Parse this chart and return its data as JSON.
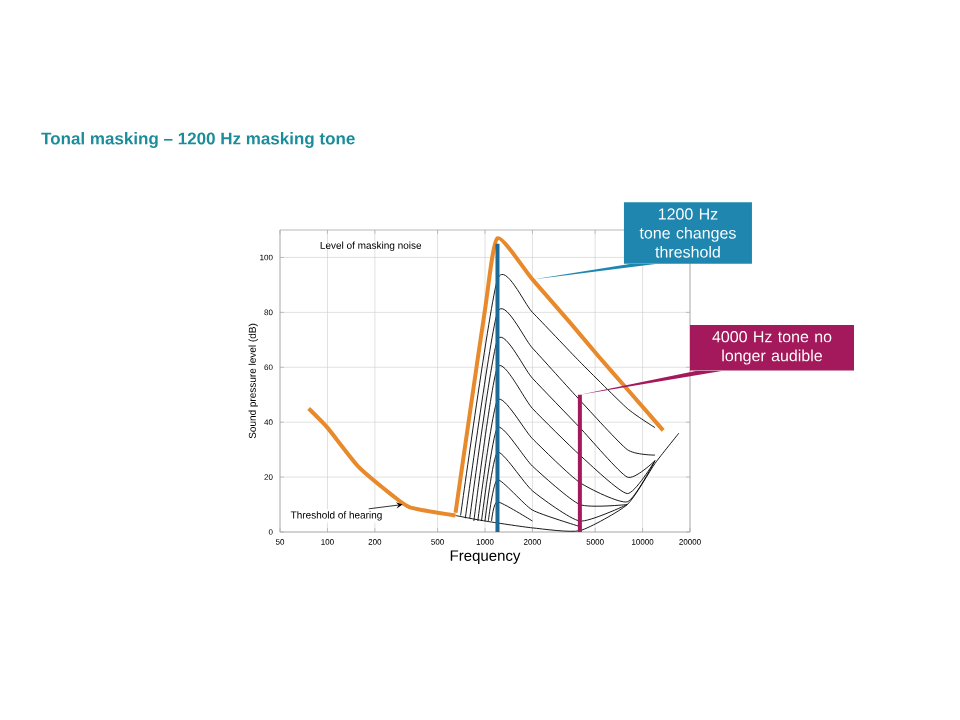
{
  "chart_data": {
    "type": "line",
    "title": "Tonal masking – 1200 Hz masking tone",
    "xlabel": "Frequency",
    "ylabel": "Sound pressure level (dB)",
    "log": "x",
    "grid": true,
    "xlim": [
      50,
      20000
    ],
    "xticks": [
      50,
      100,
      200,
      500,
      1000,
      2000,
      5000,
      10000,
      20000
    ],
    "ylim": [
      0,
      110
    ],
    "yticks": [
      0,
      20,
      40,
      60,
      80,
      100
    ],
    "annotations": [
      "Level of masking noise",
      {
        "text": "Threshold of hearing",
        "x": 300,
        "y": 10
      },
      {
        "text": "1200 Hz tone changes threshold",
        "x": 2000,
        "y": 92
      },
      {
        "text": "4000 Hz tone no longer audible",
        "x": 4000,
        "y": 50
      }
    ],
    "series": [
      {
        "color": "#000000",
        "x": [
          650,
          1000,
          2000,
          4000,
          8000,
          12000,
          17000
        ],
        "values": [
          6,
          4,
          1.5,
          0.5,
          10,
          25,
          36
        ]
      },
      {
        "color": "#000000",
        "x": [
          700,
          1200,
          2000,
          4000,
          8000,
          12000
        ],
        "values": [
          6,
          92,
          80,
          62,
          45,
          38
        ]
      },
      {
        "color": "#000000",
        "x": [
          750,
          1200,
          2000,
          4000,
          8000,
          12000
        ],
        "values": [
          5,
          80,
          67,
          48,
          30,
          28
        ]
      },
      {
        "color": "#000000",
        "x": [
          800,
          1200,
          2000,
          4000,
          8000,
          12000
        ],
        "values": [
          5,
          70,
          56,
          38,
          20,
          26
        ]
      },
      {
        "color": "#000000",
        "x": [
          850,
          1200,
          2000,
          4000,
          8000,
          12000
        ],
        "values": [
          4,
          60,
          45,
          28,
          14,
          26
        ]
      },
      {
        "color": "#000000",
        "x": [
          900,
          1200,
          2000,
          4000,
          8000,
          12000
        ],
        "values": [
          4,
          48,
          34,
          18,
          11,
          26
        ]
      },
      {
        "color": "#000000",
        "x": [
          950,
          1200,
          2000,
          4000,
          8000
        ],
        "values": [
          4,
          38,
          24,
          10,
          10
        ]
      },
      {
        "color": "#000000",
        "x": [
          1000,
          1200,
          2000,
          4000,
          8000
        ],
        "values": [
          4,
          29,
          15,
          4,
          10
        ]
      },
      {
        "color": "#000000",
        "x": [
          1050,
          1200,
          2000,
          4000
        ],
        "values": [
          4,
          19,
          8,
          2
        ]
      },
      {
        "color": "#000000",
        "x": [
          1100,
          1200,
          2000
        ],
        "values": [
          4,
          11,
          4
        ]
      },
      {
        "color": "#e8892b",
        "x": [
          76,
          100,
          156,
          250,
          334,
          650
        ],
        "values": [
          45,
          38,
          24,
          14,
          9,
          6
        ]
      },
      {
        "color": "#e8892b",
        "x": [
          650,
          800,
          1000,
          1200,
          2000,
          3500,
          5250,
          8000,
          13500
        ],
        "values": [
          7,
          43,
          81,
          107,
          92,
          76,
          64,
          52,
          37
        ]
      },
      {
        "color": "#1d6a96",
        "x": [
          1200,
          1200
        ],
        "values": [
          0,
          105
        ]
      },
      {
        "color": "#a3195b",
        "x": [
          4000,
          4000
        ],
        "values": [
          0,
          50
        ]
      }
    ]
  }
}
